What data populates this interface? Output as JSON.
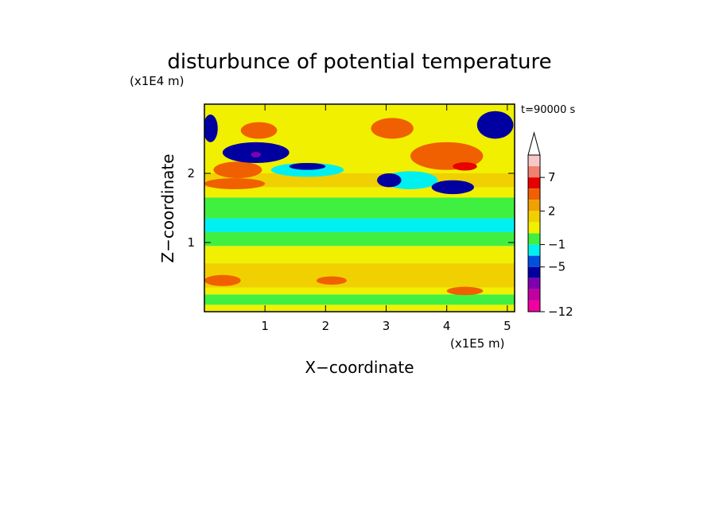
{
  "chart_data": {
    "type": "heatmap",
    "title": "disturbunce of potential temperature",
    "xlabel": "X−coordinate",
    "ylabel": "Z−coordinate",
    "x_unit": "(x1E5 m)",
    "y_unit": "(x1E4 m)",
    "time_label": "t=90000 s",
    "x_ticks": [
      "1",
      "2",
      "3",
      "4",
      "5"
    ],
    "y_ticks": [
      "1",
      "2"
    ],
    "xlim": [
      0,
      5.12
    ],
    "ylim": [
      0,
      3.0
    ],
    "colorbar": {
      "tick_labels": [
        "7",
        "2",
        "−1",
        "−5",
        "−12"
      ],
      "colors_top_to_bottom": [
        "#f8c8c8",
        "#f08070",
        "#e80000",
        "#f06000",
        "#f0a000",
        "#f0d000",
        "#f0f000",
        "#40f040",
        "#00f0f0",
        "#0050e0",
        "#0000a0",
        "#8000b0",
        "#c000a0",
        "#f000a0"
      ]
    },
    "bands": [
      {
        "z_min": 0.0,
        "z_max": 0.1,
        "level": 2,
        "color": "#f0f000"
      },
      {
        "z_min": 0.1,
        "z_max": 0.25,
        "level": 0,
        "color": "#40f040"
      },
      {
        "z_min": 0.25,
        "z_max": 0.35,
        "level": 2,
        "color": "#f0f000"
      },
      {
        "z_min": 0.35,
        "z_max": 0.7,
        "level": 3,
        "color": "#f0d000"
      },
      {
        "z_min": 0.7,
        "z_max": 0.95,
        "level": 2,
        "color": "#f0f000"
      },
      {
        "z_min": 0.95,
        "z_max": 1.15,
        "level": 0,
        "color": "#40f040"
      },
      {
        "z_min": 1.15,
        "z_max": 1.35,
        "level": -1,
        "color": "#00f0f0"
      },
      {
        "z_min": 1.35,
        "z_max": 1.65,
        "level": 0,
        "color": "#40f040"
      },
      {
        "z_min": 1.65,
        "z_max": 1.8,
        "level": 2,
        "color": "#f0f000"
      },
      {
        "z_min": 1.8,
        "z_max": 2.0,
        "level": 3,
        "color": "#f0d000"
      },
      {
        "z_min": 2.0,
        "z_max": 3.0,
        "level": 2,
        "color": "#f0f000"
      }
    ],
    "features": [
      {
        "x": 0.55,
        "z": 2.05,
        "rx": 0.4,
        "rz": 0.12,
        "level": 5,
        "color": "#f06000"
      },
      {
        "x": 0.5,
        "z": 1.85,
        "rx": 0.5,
        "rz": 0.08,
        "level": 5,
        "color": "#f06000"
      },
      {
        "x": 0.3,
        "z": 0.45,
        "rx": 0.3,
        "rz": 0.08,
        "level": 5,
        "color": "#f06000"
      },
      {
        "x": 2.1,
        "z": 0.45,
        "rx": 0.25,
        "rz": 0.06,
        "level": 5,
        "color": "#f06000"
      },
      {
        "x": 4.3,
        "z": 0.3,
        "rx": 0.3,
        "rz": 0.06,
        "level": 5,
        "color": "#f06000"
      },
      {
        "x": 0.9,
        "z": 2.62,
        "rx": 0.3,
        "rz": 0.12,
        "level": 5,
        "color": "#f06000"
      },
      {
        "x": 3.1,
        "z": 2.65,
        "rx": 0.35,
        "rz": 0.15,
        "level": 5,
        "color": "#f06000"
      },
      {
        "x": 4.0,
        "z": 2.25,
        "rx": 0.6,
        "rz": 0.2,
        "level": 5,
        "color": "#f06000"
      },
      {
        "x": 4.3,
        "z": 2.1,
        "rx": 0.2,
        "rz": 0.06,
        "level": 7,
        "color": "#e80000"
      },
      {
        "x": 1.7,
        "z": 2.05,
        "rx": 0.6,
        "rz": 0.1,
        "level": -1,
        "color": "#00f0f0"
      },
      {
        "x": 3.4,
        "z": 1.9,
        "rx": 0.45,
        "rz": 0.13,
        "level": -1,
        "color": "#00f0f0"
      },
      {
        "x": 0.1,
        "z": 2.65,
        "rx": 0.12,
        "rz": 0.2,
        "level": -5,
        "color": "#0000a0"
      },
      {
        "x": 0.85,
        "z": 2.3,
        "rx": 0.55,
        "rz": 0.15,
        "level": -5,
        "color": "#0000a0"
      },
      {
        "x": 1.7,
        "z": 2.1,
        "rx": 0.3,
        "rz": 0.05,
        "level": -5,
        "color": "#0000a0"
      },
      {
        "x": 3.05,
        "z": 1.9,
        "rx": 0.2,
        "rz": 0.1,
        "level": -5,
        "color": "#0000a0"
      },
      {
        "x": 4.1,
        "z": 1.8,
        "rx": 0.35,
        "rz": 0.1,
        "level": -5,
        "color": "#0000a0"
      },
      {
        "x": 4.8,
        "z": 2.7,
        "rx": 0.3,
        "rz": 0.2,
        "level": -5,
        "color": "#0000a0"
      },
      {
        "x": 0.85,
        "z": 2.27,
        "rx": 0.08,
        "rz": 0.04,
        "level": -8,
        "color": "#8000b0"
      }
    ]
  }
}
